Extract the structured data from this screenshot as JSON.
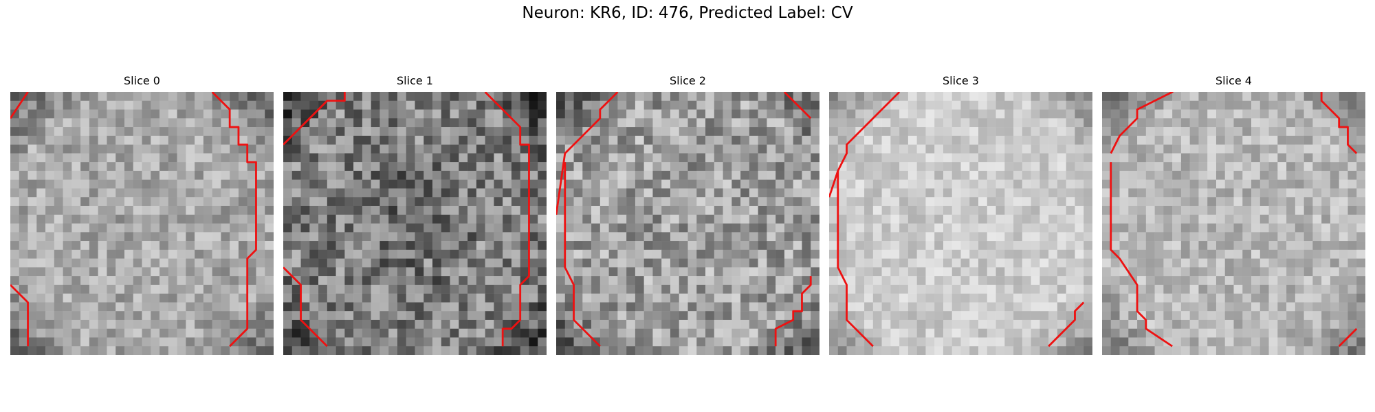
{
  "figure": {
    "title": "Neuron: KR6, ID: 476, Predicted Label: CV"
  },
  "colors": {
    "contour": "#ee1111",
    "background": "#ffffff"
  },
  "panels": [
    {
      "title": "Slice 0",
      "seed": 11,
      "base": 0.66,
      "contrast": 0.16,
      "variant": "soft"
    },
    {
      "title": "Slice 1",
      "seed": 23,
      "base": 0.5,
      "contrast": 0.24,
      "variant": "dark"
    },
    {
      "title": "Slice 2",
      "seed": 37,
      "base": 0.62,
      "contrast": 0.22,
      "variant": "mid"
    },
    {
      "title": "Slice 3",
      "seed": 41,
      "base": 0.8,
      "contrast": 0.11,
      "variant": "bright"
    },
    {
      "title": "Slice 4",
      "seed": 53,
      "base": 0.72,
      "contrast": 0.14,
      "variant": "bright"
    }
  ]
}
